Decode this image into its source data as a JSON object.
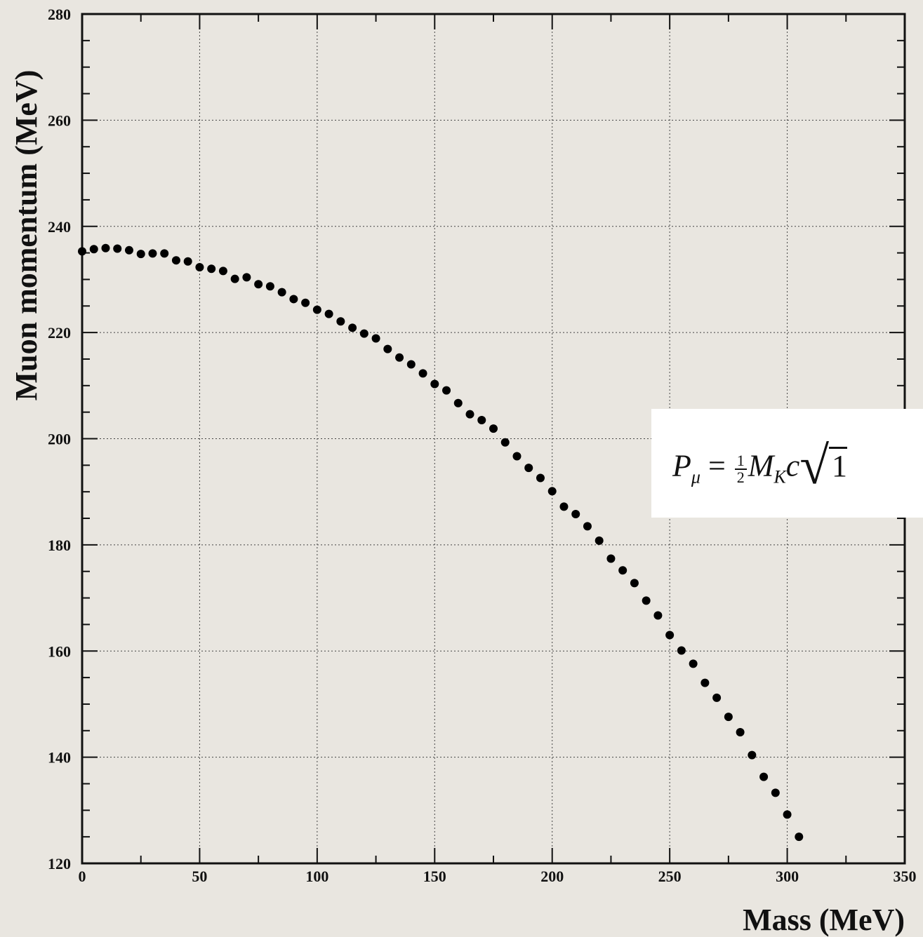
{
  "chart_data": {
    "type": "scatter",
    "title": "",
    "xlabel": "Mass  (MeV)",
    "ylabel": "Muon momentum (MeV)",
    "xlim": [
      0,
      350
    ],
    "ylim": [
      120,
      280
    ],
    "grid": true,
    "x_ticks": [
      "0",
      "50",
      "100",
      "150",
      "200",
      "250",
      "300",
      "350"
    ],
    "y_ticks": [
      "120",
      "140",
      "160",
      "180",
      "200",
      "220",
      "240",
      "260",
      "280"
    ],
    "annotation": {
      "lhs": "P",
      "lhs_sub": "μ",
      "eq": " = ",
      "frac_num": "1",
      "frac_den": "2",
      "m": "M",
      "m_sub": "K",
      "c": "c",
      "sqrt_sign": "√",
      "radicand": "1"
    },
    "series": [
      {
        "marker": "circle",
        "color": "#000000",
        "x": [
          0,
          5,
          10,
          15,
          20,
          25,
          30,
          35,
          40,
          45,
          50,
          55,
          60,
          65,
          70,
          75,
          80,
          85,
          90,
          95,
          100,
          105,
          110,
          115,
          120,
          125,
          130,
          135,
          140,
          145,
          150,
          155,
          160,
          165,
          170,
          175,
          180,
          185,
          190,
          195,
          200,
          205,
          210,
          215,
          220,
          225,
          230,
          235,
          240,
          245,
          250,
          255,
          260,
          265,
          270,
          275,
          280,
          285,
          290,
          295,
          300,
          305
        ],
        "y": [
          235.3,
          235.7,
          235.9,
          235.8,
          235.5,
          234.8,
          234.9,
          234.9,
          233.6,
          233.4,
          232.3,
          232.0,
          231.6,
          230.1,
          230.4,
          229.1,
          228.7,
          227.6,
          226.3,
          225.6,
          224.3,
          223.5,
          222.1,
          220.9,
          219.8,
          218.9,
          216.9,
          215.3,
          214.0,
          212.3,
          210.3,
          209.1,
          206.7,
          204.6,
          203.5,
          201.9,
          199.3,
          196.7,
          194.5,
          192.6,
          190.1,
          187.2,
          185.8,
          183.5,
          180.8,
          177.4,
          175.2,
          172.8,
          169.5,
          166.7,
          163.0,
          160.1,
          157.6,
          154.0,
          151.2,
          147.6,
          144.7,
          140.4,
          136.3,
          133.3,
          129.2,
          125.0
        ]
      }
    ]
  }
}
